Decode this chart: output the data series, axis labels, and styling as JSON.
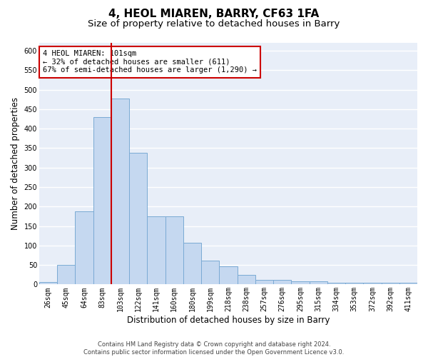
{
  "title": "4, HEOL MIAREN, BARRY, CF63 1FA",
  "subtitle": "Size of property relative to detached houses in Barry",
  "xlabel": "Distribution of detached houses by size in Barry",
  "ylabel": "Number of detached properties",
  "categories": [
    "26sqm",
    "45sqm",
    "64sqm",
    "83sqm",
    "103sqm",
    "122sqm",
    "141sqm",
    "160sqm",
    "180sqm",
    "199sqm",
    "218sqm",
    "238sqm",
    "257sqm",
    "276sqm",
    "295sqm",
    "315sqm",
    "334sqm",
    "353sqm",
    "372sqm",
    "392sqm",
    "411sqm"
  ],
  "values": [
    7,
    51,
    188,
    430,
    477,
    338,
    175,
    175,
    107,
    62,
    46,
    25,
    12,
    12,
    9,
    8,
    5,
    4,
    5,
    5,
    4
  ],
  "bar_color": "#c5d8f0",
  "bar_edge_color": "#7aaad4",
  "vline_index": 4,
  "vline_color": "#cc0000",
  "annotation_text": "4 HEOL MIAREN: 101sqm\n← 32% of detached houses are smaller (611)\n67% of semi-detached houses are larger (1,290) →",
  "annotation_box_color": "#ffffff",
  "annotation_box_edge": "#cc0000",
  "ylim": [
    0,
    620
  ],
  "yticks": [
    0,
    50,
    100,
    150,
    200,
    250,
    300,
    350,
    400,
    450,
    500,
    550,
    600
  ],
  "plot_bg": "#e8eef8",
  "grid_color": "#ffffff",
  "title_fontsize": 11,
  "subtitle_fontsize": 9.5,
  "axis_label_fontsize": 8.5,
  "tick_fontsize": 7,
  "footer": "Contains HM Land Registry data © Crown copyright and database right 2024.\nContains public sector information licensed under the Open Government Licence v3.0."
}
